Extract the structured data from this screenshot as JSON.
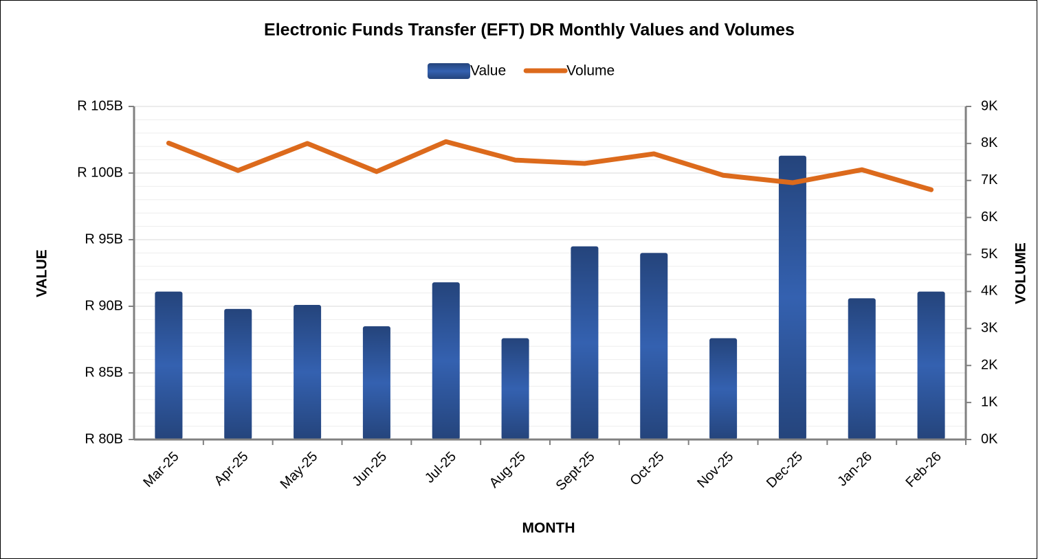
{
  "chart_data": {
    "type": "bar_line",
    "title": "Electronic Funds Transfer (EFT) DR Monthly Values and Volumes",
    "x_label": "MONTH",
    "y_label": "VALUE",
    "y2_label": "VOLUME",
    "categories": [
      "Mar-25",
      "Apr-25",
      "May-25",
      "Jun-25",
      "Jul-25",
      "Aug-25",
      "Sept-25",
      "Oct-25",
      "Nov-25",
      "Dec-25",
      "Jan-26",
      "Feb-26"
    ],
    "series": [
      {
        "name": "Value",
        "type": "bar",
        "axis": "y",
        "color": "#3461b0",
        "values": [
          91.1,
          89.8,
          90.1,
          88.5,
          91.8,
          87.6,
          94.5,
          94.0,
          87.6,
          101.3,
          90.6,
          91.1
        ]
      },
      {
        "name": "Volume",
        "type": "line",
        "axis": "y2",
        "color": "#dc6a1c",
        "values": [
          8.01,
          7.27,
          8.0,
          7.24,
          8.05,
          7.55,
          7.46,
          7.72,
          7.14,
          6.94,
          7.29,
          6.75
        ]
      }
    ],
    "ylim": [
      80,
      105
    ],
    "yticks": [
      {
        "value": 80,
        "label": "R 80B"
      },
      {
        "value": 85,
        "label": "R 85B"
      },
      {
        "value": 90,
        "label": "R 90B"
      },
      {
        "value": 95,
        "label": "R 95B"
      },
      {
        "value": 100,
        "label": "R 100B"
      },
      {
        "value": 105,
        "label": "R 105B"
      }
    ],
    "y2lim": [
      0,
      9
    ],
    "y2ticks": [
      {
        "value": 0,
        "label": "0K"
      },
      {
        "value": 1,
        "label": "1K"
      },
      {
        "value": 2,
        "label": "2K"
      },
      {
        "value": 3,
        "label": "3K"
      },
      {
        "value": 4,
        "label": "4K"
      },
      {
        "value": 5,
        "label": "5K"
      },
      {
        "value": 6,
        "label": "6K"
      },
      {
        "value": 7,
        "label": "7K"
      },
      {
        "value": 8,
        "label": "8K"
      },
      {
        "value": 9,
        "label": "9K"
      }
    ],
    "grid": true,
    "legend": "top"
  }
}
